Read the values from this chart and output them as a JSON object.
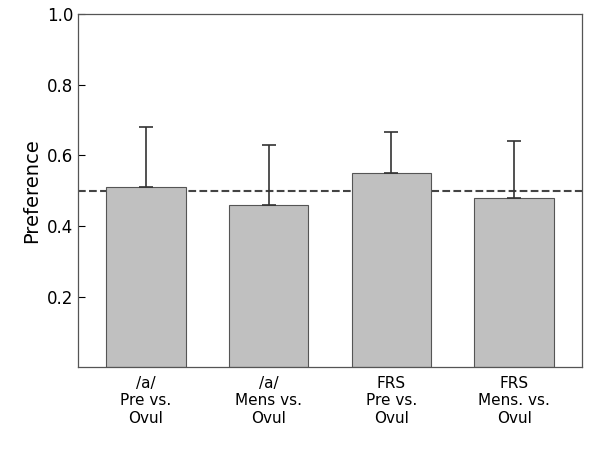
{
  "categories": [
    "/a/\nPre vs.\nOvul",
    "/a/\nMens vs.\nOvul",
    "FRS\nPre vs.\nOvul",
    "FRS\nMens. vs.\nOvul"
  ],
  "values": [
    0.51,
    0.46,
    0.55,
    0.48
  ],
  "errors": [
    0.17,
    0.17,
    0.115,
    0.16
  ],
  "bar_color": "#c0c0c0",
  "bar_edgecolor": "#555555",
  "dashed_line_y": 0.5,
  "ylabel": "Preference",
  "ylim": [
    0.0,
    1.0
  ],
  "yticks": [
    0.2,
    0.4,
    0.6,
    0.8,
    1.0
  ],
  "bar_width": 0.65,
  "figsize": [
    6.0,
    4.71
  ],
  "dpi": 100,
  "background_color": "#ffffff",
  "errorbar_color": "#333333",
  "errorbar_capsize": 5,
  "errorbar_linewidth": 1.2,
  "dashed_line_color": "#444444",
  "dashed_line_linewidth": 1.5,
  "ylabel_fontsize": 14,
  "tick_fontsize": 12,
  "xlabel_fontsize": 11
}
